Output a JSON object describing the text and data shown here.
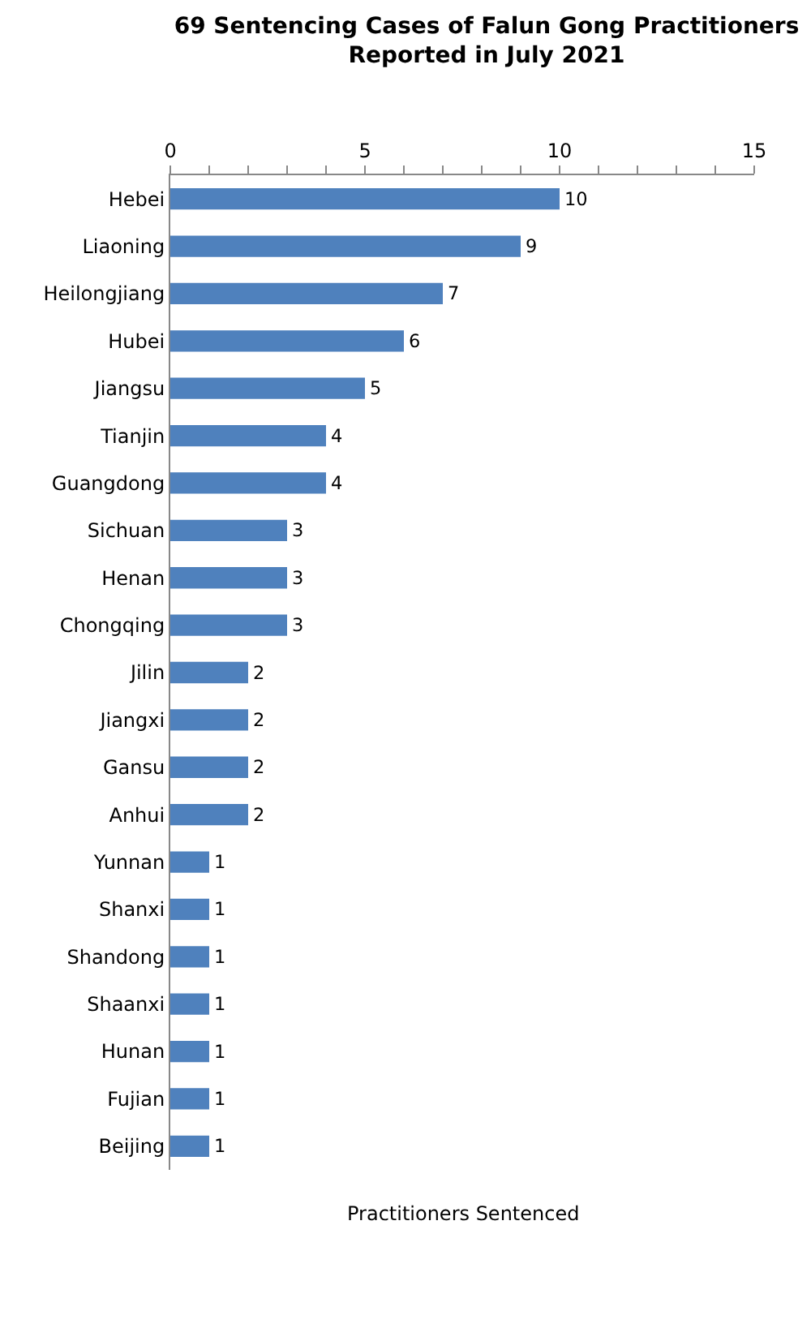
{
  "chart_data": {
    "type": "bar",
    "orientation": "horizontal",
    "title": "69 Sentencing Cases of Falun Gong Practitioners\nReported in July 2021",
    "xlabel": "Practitioners Sentenced",
    "categories": [
      "Hebei",
      "Liaoning",
      "Heilongjiang",
      "Hubei",
      "Jiangsu",
      "Tianjin",
      "Guangdong",
      "Sichuan",
      "Henan",
      "Chongqing",
      "Jilin",
      "Jiangxi",
      "Gansu",
      "Anhui",
      "Yunnan",
      "Shanxi",
      "Shandong",
      "Shaanxi",
      "Hunan",
      "Fujian",
      "Beijing"
    ],
    "values": [
      10,
      9,
      7,
      6,
      5,
      4,
      4,
      3,
      3,
      3,
      2,
      2,
      2,
      2,
      1,
      1,
      1,
      1,
      1,
      1,
      1
    ],
    "color": "#4f81bd",
    "data_labels": true,
    "legend": false,
    "xlim": [
      0,
      15
    ],
    "xticks": [
      0,
      {
        "value": 1,
        "label": null
      },
      {
        "value": 2,
        "label": null
      },
      {
        "value": 3,
        "label": null
      },
      {
        "value": 4,
        "label": null
      },
      5,
      {
        "value": 6,
        "label": null
      },
      {
        "value": 7,
        "label": null
      },
      {
        "value": 8,
        "label": null
      },
      {
        "value": 9,
        "label": null
      },
      10,
      {
        "value": 11,
        "label": null
      },
      {
        "value": 12,
        "label": null
      },
      {
        "value": 13,
        "label": null
      },
      {
        "value": 14,
        "label": null
      },
      15
    ]
  }
}
